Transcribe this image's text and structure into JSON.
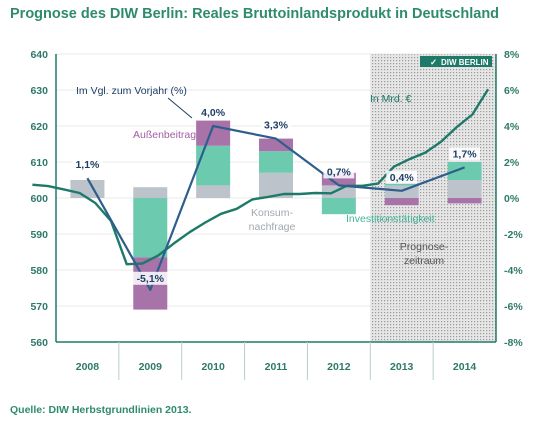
{
  "title": "Prognose des DIW Berlin: Reales Bruttoinlandsprodukt in Deutschland",
  "source": "Quelle: DIW Herbstgrundlinien 2013.",
  "logo_text": "DIW BERLIN",
  "colors": {
    "teal": "#1e7a68",
    "mint": "#6ccaaf",
    "purple": "#a873a9",
    "grey": "#bcc3cb",
    "axis": "#1e7a68",
    "shade": "#d8d8d8"
  },
  "chart_data": {
    "type": "line",
    "categories": [
      "2008",
      "2009",
      "2010",
      "2011",
      "2012",
      "2013",
      "2014"
    ],
    "y_left": {
      "ticks": [
        "560",
        "570",
        "580",
        "590",
        "600",
        "610",
        "620",
        "630",
        "640"
      ],
      "lim": [
        560,
        640
      ]
    },
    "y_right": {
      "ticks": [
        "-8%",
        "-6%",
        "-4%",
        "-2%",
        "0%",
        "2%",
        "4%",
        "6%",
        "8%"
      ],
      "lim": [
        -8,
        8
      ]
    },
    "forecast_region": "2013-2014",
    "series": [
      {
        "name": "In Mrd. €",
        "axis": "left",
        "x": [
          2007.625,
          2007.875,
          2008.125,
          2008.375,
          2008.625,
          2008.875,
          2009.125,
          2009.375,
          2009.625,
          2009.875,
          2010.125,
          2010.375,
          2010.625,
          2010.875,
          2011.125,
          2011.375,
          2011.625,
          2011.875,
          2012.125,
          2012.375,
          2012.625,
          2012.875,
          2013.125,
          2013.375,
          2013.625,
          2013.875,
          2014.125,
          2014.375,
          2014.625,
          2014.875
        ],
        "values": [
          603.7,
          603.3,
          602.4,
          601.4,
          598.6,
          593.6,
          581.6,
          581.8,
          584.0,
          587.4,
          590.5,
          593.2,
          595.6,
          597.0,
          599.6,
          600.3,
          601.1,
          601.1,
          601.4,
          601.3,
          603.4,
          603.4,
          604.0,
          608.7,
          610.8,
          612.6,
          615.6,
          619.7,
          623.2,
          630.2
        ]
      },
      {
        "name": "Im Vgl. zum Vorjahr (%)",
        "axis": "right",
        "values": [
          1.1,
          -5.1,
          4.0,
          3.3,
          0.7,
          0.4,
          1.7
        ],
        "labels": [
          "1,1%",
          "-5,1%",
          "4,0%",
          "3,3%",
          "0,7%",
          "0,4%",
          "1,7%"
        ]
      }
    ],
    "stacked_components": [
      {
        "name": "Außenbeitrag",
        "color": "purple"
      },
      {
        "name": "Konsum-nachfrage",
        "color": "grey"
      },
      {
        "name": "Investitionstätigkeit",
        "color": "mint"
      }
    ],
    "contributions_pp": [
      {
        "year": "2008",
        "segments": [
          {
            "c": "grey",
            "v": 1.0
          }
        ]
      },
      {
        "year": "2009",
        "segments": [
          {
            "c": "grey",
            "v": 0.6
          },
          {
            "c": "mint",
            "v": -3.3
          },
          {
            "c": "purple",
            "v": -2.9
          }
        ]
      },
      {
        "year": "2010",
        "segments": [
          {
            "c": "grey",
            "v": 0.7
          },
          {
            "c": "mint",
            "v": 2.2
          },
          {
            "c": "purple",
            "v": 1.4
          }
        ]
      },
      {
        "year": "2011",
        "segments": [
          {
            "c": "grey",
            "v": 1.4
          },
          {
            "c": "mint",
            "v": 1.2
          },
          {
            "c": "purple",
            "v": 0.7
          }
        ]
      },
      {
        "year": "2012",
        "segments": [
          {
            "c": "grey",
            "v": 0.7
          },
          {
            "c": "purple",
            "v": 0.7
          },
          {
            "c": "mint",
            "v": -0.9
          }
        ]
      },
      {
        "year": "2013",
        "segments": [
          {
            "c": "grey",
            "v": 0.7
          },
          {
            "c": "mint",
            "v": 0.1
          },
          {
            "c": "purple",
            "v": -0.4
          }
        ]
      },
      {
        "year": "2014",
        "segments": [
          {
            "c": "grey",
            "v": 1.0
          },
          {
            "c": "mint",
            "v": 1.0
          },
          {
            "c": "purple",
            "v": -0.3
          }
        ]
      }
    ],
    "annotations": {
      "line_label_pct": "Im Vgl. zum Vorjahr (%)",
      "line_label_level": "In Mrd. €",
      "component_labels": [
        "Außenbeitrag",
        "Konsum-nachfrage",
        "Investitionstätigkeit"
      ],
      "forecast_label": "Prognose-zeitraum"
    }
  }
}
